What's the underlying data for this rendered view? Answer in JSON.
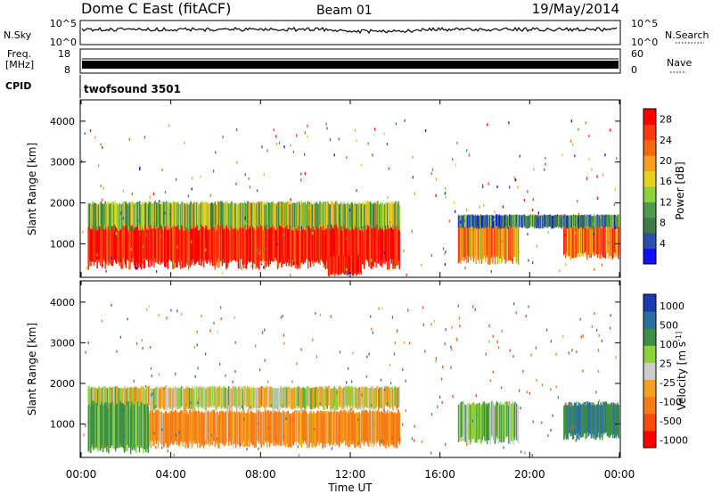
{
  "header": {
    "station": "Dome C East (fitACF)",
    "beam": "Beam 01",
    "date": "19/May/2014"
  },
  "nsky_panel": {
    "left_label": "N.Sky",
    "left_ticks": [
      "10^5",
      "10^0"
    ],
    "right_label": "N.Search",
    "right_ticks": [
      "10^5",
      "10^0"
    ]
  },
  "freq_panel": {
    "left_label_line1": "Freq.",
    "left_label_line2": "[MHz]",
    "left_ticks": [
      "18",
      "8"
    ],
    "right_label": "Nave",
    "right_ticks": [
      "60",
      "0"
    ]
  },
  "cpid": {
    "label": "CPID",
    "value": "twofsound 3501"
  },
  "x_axis": {
    "label": "Time UT",
    "ticks": [
      "00:00",
      "04:00",
      "08:00",
      "12:00",
      "16:00",
      "20:00",
      "00:00"
    ]
  },
  "colors": {
    "power_scale": [
      "#1010ff",
      "#2b4fa8",
      "#3f7a4a",
      "#4f9a4f",
      "#8cd23c",
      "#e6d21e",
      "#f5a11e",
      "#f26a10",
      "#ff3a10",
      "#ff0000"
    ],
    "velocity_scale": [
      "#ff0000",
      "#ff4a10",
      "#f57a18",
      "#f5a11e",
      "#cccccc",
      "#8cd23c",
      "#3f8f4a",
      "#2b6fa0",
      "#1a3ab0"
    ]
  },
  "chart_data": [
    {
      "type": "heatmap",
      "panel": "power",
      "ylabel": "Slant Range [km]",
      "xlabel": "",
      "y_ticks": [
        "1000",
        "2000",
        "3000",
        "4000"
      ],
      "ylim": [
        200,
        4500
      ],
      "xlim_hours": [
        0,
        24
      ],
      "colorbar": {
        "label": "Power [dB]",
        "ticks": [
          "4",
          "8",
          "12",
          "16",
          "20",
          "24",
          "28"
        ],
        "range": [
          0,
          30
        ]
      },
      "regions": [
        {
          "x": [
            0.3,
            14.2
          ],
          "y": [
            500,
            1600
          ],
          "value": 28
        },
        {
          "x": [
            0.3,
            14.2
          ],
          "y": [
            1400,
            2000
          ],
          "value": 13
        },
        {
          "x": [
            11.0,
            12.5
          ],
          "y": [
            250,
            700
          ],
          "value": 28
        },
        {
          "x": [
            16.8,
            19.5
          ],
          "y": [
            600,
            1500
          ],
          "value": 20
        },
        {
          "x": [
            21.5,
            24.0
          ],
          "y": [
            700,
            1500
          ],
          "value": 22
        },
        {
          "x": [
            16.8,
            24.0
          ],
          "y": [
            1400,
            1700
          ],
          "value": 8
        }
      ]
    },
    {
      "type": "heatmap",
      "panel": "velocity",
      "ylabel": "Slant Range [km]",
      "xlabel": "Time UT",
      "y_ticks": [
        "1000",
        "2000",
        "3000",
        "4000"
      ],
      "ylim": [
        200,
        4500
      ],
      "xlim_hours": [
        0,
        24
      ],
      "colorbar": {
        "label": "Velocity [m s^-1]",
        "ticks": [
          "1000",
          "500",
          "100",
          "25",
          "-25",
          "-100",
          "-500",
          "-1000"
        ],
        "range": [
          -1000,
          1000
        ]
      },
      "regions": [
        {
          "x": [
            0.3,
            14.2
          ],
          "y": [
            500,
            1300
          ],
          "value": -120
        },
        {
          "x": [
            0.3,
            14.2
          ],
          "y": [
            1400,
            1900
          ],
          "value": 0
        },
        {
          "x": [
            0.3,
            3.0
          ],
          "y": [
            400,
            1500
          ],
          "value": 150
        },
        {
          "x": [
            16.8,
            19.5
          ],
          "y": [
            600,
            1500
          ],
          "value": 80
        },
        {
          "x": [
            21.5,
            24.0
          ],
          "y": [
            700,
            1500
          ],
          "value": 500
        }
      ]
    }
  ]
}
